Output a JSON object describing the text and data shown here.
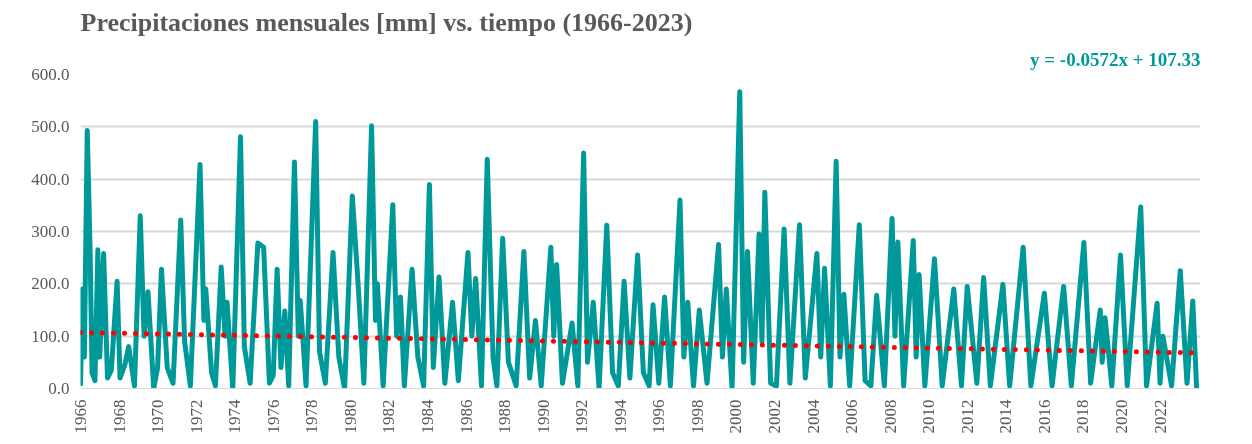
{
  "chart_data": {
    "type": "line",
    "title": "Precipitaciones mensuales [mm] vs. tiempo  (1966-2023)",
    "annotations": [
      "y = -0.0572x + 107.33"
    ],
    "xlim": [
      1966,
      2024.1
    ],
    "xticks": [
      1966,
      1968,
      1970,
      1972,
      1974,
      1976,
      1978,
      1980,
      1982,
      1984,
      1986,
      1988,
      1990,
      1992,
      1994,
      1996,
      1998,
      2000,
      2002,
      2004,
      2006,
      2008,
      2010,
      2012,
      2014,
      2016,
      2018,
      2020,
      2022
    ],
    "ylim": [
      0,
      600
    ],
    "yticks": [
      {
        "value": 0,
        "label": "0.0"
      },
      {
        "value": 100,
        "label": "100.0"
      },
      {
        "value": 200,
        "label": "200.0"
      },
      {
        "value": 300,
        "label": "300.0"
      },
      {
        "value": 400,
        "label": "400.0"
      },
      {
        "value": 500,
        "label": "500.0"
      },
      {
        "value": 600,
        "label": "600.0"
      }
    ],
    "grid": "y",
    "marker": "none",
    "series": [
      {
        "color": "#009999",
        "line_style": "solid",
        "x": [
          1966.0,
          1966.1,
          1966.2,
          1966.35,
          1966.5,
          1966.6,
          1966.75,
          1966.9,
          1967.0,
          1967.2,
          1967.4,
          1967.6,
          1967.9,
          1968.05,
          1968.3,
          1968.5,
          1968.8,
          1969.1,
          1969.3,
          1969.5,
          1969.8,
          1970.0,
          1970.2,
          1970.5,
          1970.8,
          1971.2,
          1971.4,
          1971.7,
          1972.2,
          1972.4,
          1972.5,
          1972.8,
          1973.0,
          1973.3,
          1973.5,
          1973.6,
          1973.9,
          1974.3,
          1974.5,
          1974.8,
          1975.2,
          1975.5,
          1975.8,
          1976.0,
          1976.2,
          1976.4,
          1976.6,
          1976.8,
          1977.1,
          1977.3,
          1977.4,
          1977.7,
          1978.2,
          1978.4,
          1978.7,
          1979.1,
          1979.4,
          1979.7,
          1980.1,
          1980.4,
          1980.7,
          1981.1,
          1981.3,
          1981.4,
          1981.7,
          1982.2,
          1982.4,
          1982.6,
          1982.8,
          1983.2,
          1983.5,
          1983.8,
          1984.1,
          1984.3,
          1984.6,
          1984.9,
          1985.3,
          1985.6,
          1986.1,
          1986.3,
          1986.5,
          1986.8,
          1987.1,
          1987.4,
          1987.6,
          1987.9,
          1988.2,
          1988.6,
          1989.0,
          1989.3,
          1989.6,
          1989.9,
          1990.4,
          1990.55,
          1990.7,
          1991.0,
          1991.5,
          1991.8,
          1992.1,
          1992.3,
          1992.6,
          1992.9,
          1993.3,
          1993.6,
          1993.9,
          1994.2,
          1994.5,
          1994.9,
          1995.2,
          1995.5,
          1995.7,
          1996.0,
          1996.3,
          1996.6,
          1997.1,
          1997.3,
          1997.5,
          1997.8,
          1998.1,
          1998.5,
          1999.1,
          1999.3,
          1999.5,
          1999.8,
          2000.2,
          2000.4,
          2000.6,
          2000.9,
          2001.2,
          2001.35,
          2001.5,
          2001.8,
          2002.1,
          2002.5,
          2002.8,
          2003.3,
          2003.6,
          2004.2,
          2004.4,
          2004.6,
          2004.9,
          2005.2,
          2005.4,
          2005.6,
          2005.9,
          2006.4,
          2006.7,
          2007.0,
          2007.3,
          2007.7,
          2008.1,
          2008.25,
          2008.4,
          2008.7,
          2009.2,
          2009.35,
          2009.5,
          2009.8,
          2010.3,
          2010.7,
          2011.3,
          2011.7,
          2012.0,
          2012.5,
          2012.85,
          2013.2,
          2013.85,
          2014.2,
          2014.9,
          2015.3,
          2016.0,
          2016.4,
          2017.0,
          2017.4,
          2018.05,
          2018.4,
          2018.9,
          2019.0,
          2019.15,
          2019.5,
          2019.95,
          2020.3,
          2021.0,
          2021.3,
          2021.85,
          2022.0,
          2022.15,
          2022.6,
          2023.05,
          2023.4,
          2023.7,
          2023.9
        ],
        "values": [
          5,
          190,
          60,
          493,
          260,
          30,
          15,
          265,
          60,
          258,
          20,
          35,
          205,
          20,
          45,
          80,
          5,
          330,
          100,
          185,
          0,
          40,
          228,
          40,
          10,
          322,
          90,
          5,
          428,
          130,
          190,
          30,
          5,
          232,
          100,
          165,
          0,
          481,
          80,
          10,
          278,
          270,
          10,
          25,
          228,
          40,
          148,
          5,
          433,
          100,
          168,
          5,
          510,
          70,
          10,
          260,
          60,
          0,
          368,
          200,
          10,
          502,
          130,
          200,
          5,
          351,
          100,
          175,
          5,
          228,
          60,
          5,
          390,
          40,
          213,
          10,
          165,
          15,
          260,
          100,
          210,
          5,
          438,
          60,
          5,
          287,
          50,
          5,
          262,
          20,
          130,
          5,
          270,
          100,
          237,
          10,
          125,
          5,
          450,
          50,
          165,
          0,
          312,
          30,
          5,
          205,
          20,
          255,
          30,
          5,
          160,
          10,
          175,
          5,
          360,
          60,
          165,
          5,
          150,
          10,
          275,
          60,
          190,
          0,
          567,
          50,
          262,
          10,
          295,
          90,
          375,
          10,
          5,
          305,
          10,
          313,
          20,
          258,
          60,
          230,
          5,
          434,
          60,
          180,
          5,
          313,
          15,
          5,
          178,
          5,
          325,
          100,
          280,
          5,
          283,
          60,
          218,
          5,
          248,
          5,
          190,
          5,
          195,
          10,
          212,
          5,
          199,
          5,
          270,
          5,
          182,
          5,
          195,
          5,
          279,
          10,
          150,
          50,
          135,
          5,
          255,
          5,
          347,
          5,
          163,
          10,
          100,
          5,
          225,
          10,
          167,
          0
        ]
      },
      {
        "type": "line",
        "color": "#ff0000",
        "line_style": "dotted",
        "x": [
          1966.0,
          2023.9
        ],
        "values": [
          107,
          68
        ]
      }
    ]
  }
}
